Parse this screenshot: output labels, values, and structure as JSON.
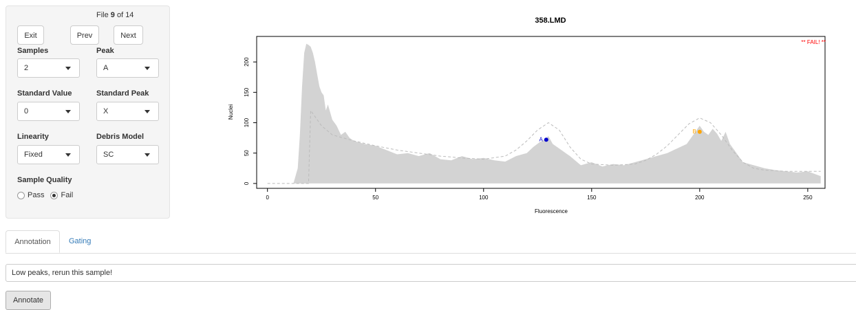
{
  "file_info": {
    "prefix": "File ",
    "current": "9",
    "suffix": " of 14"
  },
  "buttons": {
    "exit": "Exit",
    "prev": "Prev",
    "next": "Next",
    "annotate": "Annotate"
  },
  "fields": {
    "samples": {
      "label": "Samples",
      "value": "2"
    },
    "peak": {
      "label": "Peak",
      "value": "A"
    },
    "standard_value": {
      "label": "Standard Value",
      "value": "0"
    },
    "standard_peak": {
      "label": "Standard Peak",
      "value": "X"
    },
    "linearity": {
      "label": "Linearity",
      "value": "Fixed"
    },
    "debris_model": {
      "label": "Debris Model",
      "value": "SC"
    }
  },
  "sample_quality": {
    "label": "Sample Quality",
    "options": [
      "Pass",
      "Fail"
    ],
    "selected": "Fail"
  },
  "tabs": [
    "Annotation",
    "Gating"
  ],
  "annotation": {
    "value": "Low peaks, rerun this sample!"
  },
  "chart_data": {
    "type": "area",
    "title": "358.LMD",
    "xlabel": "Fluorescence",
    "ylabel": "Nuclei",
    "xlim": [
      -5,
      258
    ],
    "ylim": [
      -8,
      242
    ],
    "xticks": [
      0,
      50,
      100,
      150,
      200,
      250
    ],
    "yticks": [
      0,
      50,
      100,
      150,
      200
    ],
    "status_text": "** FAIL! **",
    "colors": {
      "fill": "#d3d3d3",
      "peak_a": "#0000cd",
      "peak_b": "#ffa500",
      "status": "#ff0000",
      "model": "#bbbbbb"
    },
    "histogram_x": [
      0,
      12,
      14,
      15,
      16,
      17,
      18,
      19,
      20,
      21,
      22,
      23,
      24,
      25,
      26,
      27,
      28,
      30,
      32,
      34,
      36,
      38,
      40,
      45,
      50,
      55,
      60,
      65,
      70,
      75,
      80,
      85,
      90,
      95,
      100,
      105,
      110,
      115,
      120,
      123,
      126,
      128,
      130,
      132,
      134,
      136,
      138,
      140,
      145,
      150,
      155,
      160,
      165,
      170,
      175,
      180,
      185,
      188,
      191,
      194,
      196,
      198,
      200,
      202,
      204,
      206,
      208,
      210,
      212,
      214,
      216,
      218,
      220,
      225,
      230,
      235,
      240,
      245,
      250,
      256
    ],
    "histogram_y": [
      0,
      0,
      25,
      80,
      160,
      215,
      230,
      228,
      225,
      215,
      200,
      180,
      160,
      150,
      145,
      120,
      130,
      105,
      95,
      80,
      85,
      75,
      70,
      65,
      62,
      55,
      48,
      50,
      45,
      50,
      40,
      38,
      45,
      40,
      42,
      38,
      36,
      45,
      50,
      60,
      68,
      72,
      78,
      65,
      60,
      55,
      50,
      45,
      30,
      35,
      28,
      32,
      30,
      35,
      40,
      45,
      50,
      55,
      60,
      65,
      75,
      85,
      95,
      85,
      80,
      90,
      82,
      70,
      85,
      65,
      55,
      45,
      35,
      30,
      25,
      22,
      20,
      18,
      20,
      12
    ],
    "model_x": [
      0,
      18,
      19,
      20,
      25,
      30,
      40,
      50,
      60,
      70,
      80,
      90,
      100,
      110,
      115,
      120,
      125,
      130,
      135,
      140,
      145,
      150,
      160,
      170,
      175,
      180,
      185,
      190,
      195,
      200,
      205,
      210,
      215,
      220,
      225,
      230,
      240,
      250,
      256
    ],
    "model_y": [
      0,
      0,
      0,
      120,
      95,
      80,
      70,
      62,
      55,
      50,
      45,
      42,
      40,
      45,
      55,
      70,
      88,
      100,
      88,
      60,
      40,
      32,
      30,
      32,
      38,
      48,
      62,
      80,
      98,
      108,
      100,
      80,
      55,
      35,
      25,
      22,
      20,
      20,
      20
    ],
    "peaks": [
      {
        "label": "A",
        "x": 129,
        "y": 72
      },
      {
        "label": "B",
        "x": 200,
        "y": 85
      }
    ]
  }
}
